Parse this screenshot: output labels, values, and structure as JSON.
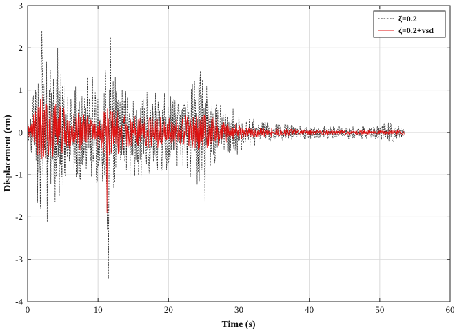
{
  "chart_data": {
    "type": "line",
    "title": "",
    "xlabel": "Time (s)",
    "ylabel": "Displacement (cm)",
    "xlim": [
      0,
      60
    ],
    "ylim": [
      -4,
      3
    ],
    "x_ticks": [
      "0",
      "10",
      "20",
      "30",
      "40",
      "50",
      "60"
    ],
    "y_ticks": [
      "3",
      "2",
      "1",
      "0",
      "-1",
      "-2",
      "-3",
      "-4"
    ],
    "grid": true,
    "legend_position": "top-right",
    "time_end": 53.5,
    "series": [
      {
        "name": "ζ=0.2",
        "color": "#222222",
        "line_style": "dashed",
        "envelope": [
          {
            "x": 0,
            "y": 0.2
          },
          {
            "x": 0.7,
            "y": 0.7
          },
          {
            "x": 1.5,
            "y": 1.8
          },
          {
            "x": 2.0,
            "y": 2.4
          },
          {
            "x": 2.8,
            "y": 1.8
          },
          {
            "x": 4.0,
            "y": 2.0
          },
          {
            "x": 5.0,
            "y": 1.5
          },
          {
            "x": 6.5,
            "y": 1.2
          },
          {
            "x": 8.5,
            "y": 1.45
          },
          {
            "x": 10.0,
            "y": 1.2
          },
          {
            "x": 11.8,
            "y": 2.25
          },
          {
            "x": 13.0,
            "y": 1.0
          },
          {
            "x": 15.0,
            "y": 1.1
          },
          {
            "x": 18.0,
            "y": 1.0
          },
          {
            "x": 22.0,
            "y": 0.8
          },
          {
            "x": 24.5,
            "y": 1.45
          },
          {
            "x": 27.0,
            "y": 0.7
          },
          {
            "x": 30.0,
            "y": 0.5
          },
          {
            "x": 33.0,
            "y": 0.25
          },
          {
            "x": 40.0,
            "y": 0.15
          },
          {
            "x": 50.0,
            "y": 0.15
          },
          {
            "x": 51.0,
            "y": 0.3
          },
          {
            "x": 53.5,
            "y": 0.15
          }
        ],
        "extremes": [
          {
            "x": 2.0,
            "y": 2.4
          },
          {
            "x": 2.8,
            "y": -2.1
          },
          {
            "x": 4.3,
            "y": 2.0
          },
          {
            "x": 1.8,
            "y": -1.8
          },
          {
            "x": 11.3,
            "y": -2.3
          },
          {
            "x": 11.5,
            "y": -3.45
          },
          {
            "x": 11.8,
            "y": 2.25
          },
          {
            "x": 24.5,
            "y": 1.45
          },
          {
            "x": 25.2,
            "y": -1.75
          }
        ]
      },
      {
        "name": "ζ=0.2+vsd",
        "color": "#e01010",
        "line_style": "solid",
        "envelope": [
          {
            "x": 0,
            "y": 0.1
          },
          {
            "x": 1.0,
            "y": 0.5
          },
          {
            "x": 2.0,
            "y": 0.9
          },
          {
            "x": 4.0,
            "y": 0.7
          },
          {
            "x": 6.0,
            "y": 0.5
          },
          {
            "x": 10.0,
            "y": 0.4
          },
          {
            "x": 11.5,
            "y": 0.6
          },
          {
            "x": 15.0,
            "y": 0.4
          },
          {
            "x": 20.0,
            "y": 0.35
          },
          {
            "x": 25.0,
            "y": 0.45
          },
          {
            "x": 28.0,
            "y": 0.25
          },
          {
            "x": 32.0,
            "y": 0.12
          },
          {
            "x": 40.0,
            "y": 0.06
          },
          {
            "x": 53.5,
            "y": 0.05
          }
        ],
        "extremes": [
          {
            "x": 2.2,
            "y": 0.9
          },
          {
            "x": 1.6,
            "y": -0.75
          },
          {
            "x": 11.3,
            "y": -1.9
          },
          {
            "x": 11.7,
            "y": 0.6
          }
        ]
      }
    ]
  }
}
